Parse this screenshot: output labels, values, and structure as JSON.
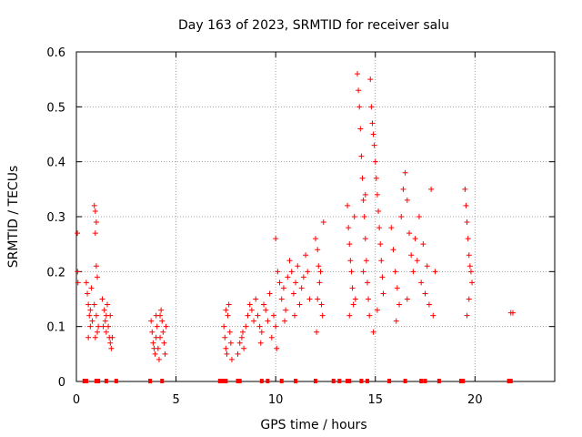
{
  "chart_data": {
    "type": "scatter",
    "title": "Day 163 of 2023, SRMTID for receiver salu",
    "xlabel": "GPS time / hours",
    "ylabel": "SRMTID / TECUs",
    "xlim": [
      0,
      24
    ],
    "ylim": [
      0,
      0.6
    ],
    "xticks": [
      0,
      5,
      10,
      15,
      20
    ],
    "xtick_labels": [
      "0",
      "5",
      "10",
      "15",
      "20"
    ],
    "yticks": [
      0,
      0.1,
      0.2,
      0.3,
      0.4,
      0.5,
      0.6
    ],
    "ytick_labels": [
      "0",
      "0.1",
      "0.2",
      "0.3",
      "0.4",
      "0.5",
      "0.6"
    ],
    "grid": true,
    "marker": "+",
    "color": "#ff0000",
    "series": [
      {
        "name": "SRMTID",
        "points": [
          [
            0.05,
            0.27
          ],
          [
            0.06,
            0.2
          ],
          [
            0.08,
            0.18
          ],
          [
            0.5,
            0.18
          ],
          [
            0.55,
            0.16
          ],
          [
            0.6,
            0.14
          ],
          [
            0.65,
            0.12
          ],
          [
            0.7,
            0.1
          ],
          [
            0.6,
            0.08
          ],
          [
            0.75,
            0.17
          ],
          [
            0.8,
            0.11
          ],
          [
            0.7,
            0.13
          ],
          [
            0.9,
            0.32
          ],
          [
            0.95,
            0.31
          ],
          [
            1.0,
            0.29
          ],
          [
            0.95,
            0.27
          ],
          [
            1.0,
            0.21
          ],
          [
            1.05,
            0.19
          ],
          [
            0.9,
            0.14
          ],
          [
            1.0,
            0.12
          ],
          [
            1.1,
            0.1
          ],
          [
            1.05,
            0.09
          ],
          [
            0.95,
            0.08
          ],
          [
            1.3,
            0.15
          ],
          [
            1.4,
            0.13
          ],
          [
            1.5,
            0.12
          ],
          [
            1.45,
            0.11
          ],
          [
            1.5,
            0.09
          ],
          [
            1.6,
            0.1
          ],
          [
            1.65,
            0.08
          ],
          [
            1.7,
            0.07
          ],
          [
            1.75,
            0.06
          ],
          [
            1.8,
            0.08
          ],
          [
            1.55,
            0.14
          ],
          [
            1.7,
            0.12
          ],
          [
            1.35,
            0.1
          ],
          [
            3.75,
            0.11
          ],
          [
            3.8,
            0.09
          ],
          [
            3.85,
            0.07
          ],
          [
            3.9,
            0.06
          ],
          [
            3.95,
            0.05
          ],
          [
            4.0,
            0.08
          ],
          [
            4.05,
            0.1
          ],
          [
            4.1,
            0.06
          ],
          [
            4.15,
            0.04
          ],
          [
            4.2,
            0.12
          ],
          [
            4.25,
            0.13
          ],
          [
            4.3,
            0.11
          ],
          [
            4.35,
            0.09
          ],
          [
            4.4,
            0.07
          ],
          [
            4.45,
            0.05
          ],
          [
            4.5,
            0.1
          ],
          [
            4.2,
            0.08
          ],
          [
            4.0,
            0.12
          ],
          [
            7.4,
            0.1
          ],
          [
            7.45,
            0.08
          ],
          [
            7.5,
            0.06
          ],
          [
            7.55,
            0.05
          ],
          [
            7.6,
            0.12
          ],
          [
            7.65,
            0.14
          ],
          [
            7.7,
            0.09
          ],
          [
            7.75,
            0.07
          ],
          [
            7.8,
            0.04
          ],
          [
            7.5,
            0.13
          ],
          [
            8.1,
            0.05
          ],
          [
            8.2,
            0.07
          ],
          [
            8.3,
            0.08
          ],
          [
            8.4,
            0.06
          ],
          [
            8.5,
            0.1
          ],
          [
            8.35,
            0.09
          ],
          [
            8.6,
            0.12
          ],
          [
            8.7,
            0.14
          ],
          [
            8.8,
            0.13
          ],
          [
            8.9,
            0.11
          ],
          [
            9.0,
            0.15
          ],
          [
            9.1,
            0.12
          ],
          [
            9.2,
            0.1
          ],
          [
            9.3,
            0.09
          ],
          [
            9.4,
            0.14
          ],
          [
            9.5,
            0.13
          ],
          [
            9.6,
            0.11
          ],
          [
            9.7,
            0.16
          ],
          [
            9.8,
            0.08
          ],
          [
            9.9,
            0.12
          ],
          [
            10.0,
            0.1
          ],
          [
            10.05,
            0.06
          ],
          [
            9.25,
            0.07
          ],
          [
            10.0,
            0.26
          ],
          [
            10.1,
            0.2
          ],
          [
            10.2,
            0.18
          ],
          [
            10.3,
            0.15
          ],
          [
            10.4,
            0.17
          ],
          [
            10.5,
            0.13
          ],
          [
            10.6,
            0.19
          ],
          [
            10.7,
            0.22
          ],
          [
            10.8,
            0.2
          ],
          [
            10.9,
            0.16
          ],
          [
            11.0,
            0.18
          ],
          [
            11.1,
            0.21
          ],
          [
            11.2,
            0.14
          ],
          [
            11.3,
            0.17
          ],
          [
            11.4,
            0.19
          ],
          [
            11.5,
            0.23
          ],
          [
            11.6,
            0.2
          ],
          [
            11.7,
            0.15
          ],
          [
            10.45,
            0.11
          ],
          [
            10.95,
            0.12
          ],
          [
            12.0,
            0.26
          ],
          [
            12.1,
            0.24
          ],
          [
            12.15,
            0.21
          ],
          [
            12.2,
            0.18
          ],
          [
            12.3,
            0.14
          ],
          [
            12.35,
            0.12
          ],
          [
            12.4,
            0.29
          ],
          [
            12.25,
            0.2
          ],
          [
            12.1,
            0.15
          ],
          [
            12.05,
            0.09
          ],
          [
            13.6,
            0.32
          ],
          [
            13.65,
            0.28
          ],
          [
            13.7,
            0.25
          ],
          [
            13.75,
            0.22
          ],
          [
            13.8,
            0.2
          ],
          [
            13.85,
            0.17
          ],
          [
            13.9,
            0.14
          ],
          [
            13.95,
            0.3
          ],
          [
            14.0,
            0.15
          ],
          [
            13.7,
            0.12
          ],
          [
            14.1,
            0.56
          ],
          [
            14.15,
            0.53
          ],
          [
            14.2,
            0.5
          ],
          [
            14.25,
            0.46
          ],
          [
            14.3,
            0.41
          ],
          [
            14.35,
            0.37
          ],
          [
            14.4,
            0.33
          ],
          [
            14.45,
            0.3
          ],
          [
            14.5,
            0.26
          ],
          [
            14.55,
            0.22
          ],
          [
            14.6,
            0.18
          ],
          [
            14.65,
            0.15
          ],
          [
            14.7,
            0.12
          ],
          [
            14.4,
            0.2
          ],
          [
            14.5,
            0.34
          ],
          [
            14.75,
            0.55
          ],
          [
            14.8,
            0.5
          ],
          [
            14.85,
            0.47
          ],
          [
            14.9,
            0.45
          ],
          [
            14.95,
            0.43
          ],
          [
            15.0,
            0.4
          ],
          [
            15.05,
            0.37
          ],
          [
            15.1,
            0.34
          ],
          [
            15.15,
            0.31
          ],
          [
            15.2,
            0.28
          ],
          [
            15.25,
            0.25
          ],
          [
            15.3,
            0.22
          ],
          [
            15.35,
            0.19
          ],
          [
            15.4,
            0.16
          ],
          [
            15.1,
            0.13
          ],
          [
            14.9,
            0.09
          ],
          [
            15.8,
            0.28
          ],
          [
            15.9,
            0.24
          ],
          [
            16.0,
            0.2
          ],
          [
            16.1,
            0.17
          ],
          [
            16.2,
            0.14
          ],
          [
            16.3,
            0.3
          ],
          [
            16.4,
            0.35
          ],
          [
            16.5,
            0.38
          ],
          [
            16.6,
            0.33
          ],
          [
            16.7,
            0.27
          ],
          [
            16.8,
            0.23
          ],
          [
            16.9,
            0.2
          ],
          [
            17.0,
            0.26
          ],
          [
            17.1,
            0.22
          ],
          [
            17.2,
            0.3
          ],
          [
            17.3,
            0.18
          ],
          [
            17.4,
            0.25
          ],
          [
            17.5,
            0.16
          ],
          [
            17.6,
            0.21
          ],
          [
            17.7,
            0.14
          ],
          [
            17.8,
            0.35
          ],
          [
            17.9,
            0.12
          ],
          [
            18.0,
            0.2
          ],
          [
            16.05,
            0.11
          ],
          [
            16.6,
            0.15
          ],
          [
            19.5,
            0.35
          ],
          [
            19.55,
            0.32
          ],
          [
            19.6,
            0.29
          ],
          [
            19.65,
            0.26
          ],
          [
            19.7,
            0.23
          ],
          [
            19.75,
            0.21
          ],
          [
            19.8,
            0.2
          ],
          [
            19.85,
            0.18
          ],
          [
            19.6,
            0.12
          ],
          [
            19.7,
            0.15
          ],
          [
            21.8,
            0.125
          ],
          [
            21.9,
            0.125
          ]
        ]
      }
    ],
    "zero_markers": [
      0.4,
      0.5,
      1.0,
      1.1,
      1.5,
      2.0,
      3.7,
      4.3,
      7.2,
      7.3,
      7.4,
      7.5,
      8.1,
      8.2,
      9.3,
      9.6,
      10.3,
      11.0,
      12.0,
      12.9,
      13.2,
      13.6,
      13.7,
      14.3,
      14.6,
      15.7,
      16.5,
      17.3,
      17.5,
      18.2,
      19.3,
      19.4,
      21.7,
      21.8
    ]
  }
}
